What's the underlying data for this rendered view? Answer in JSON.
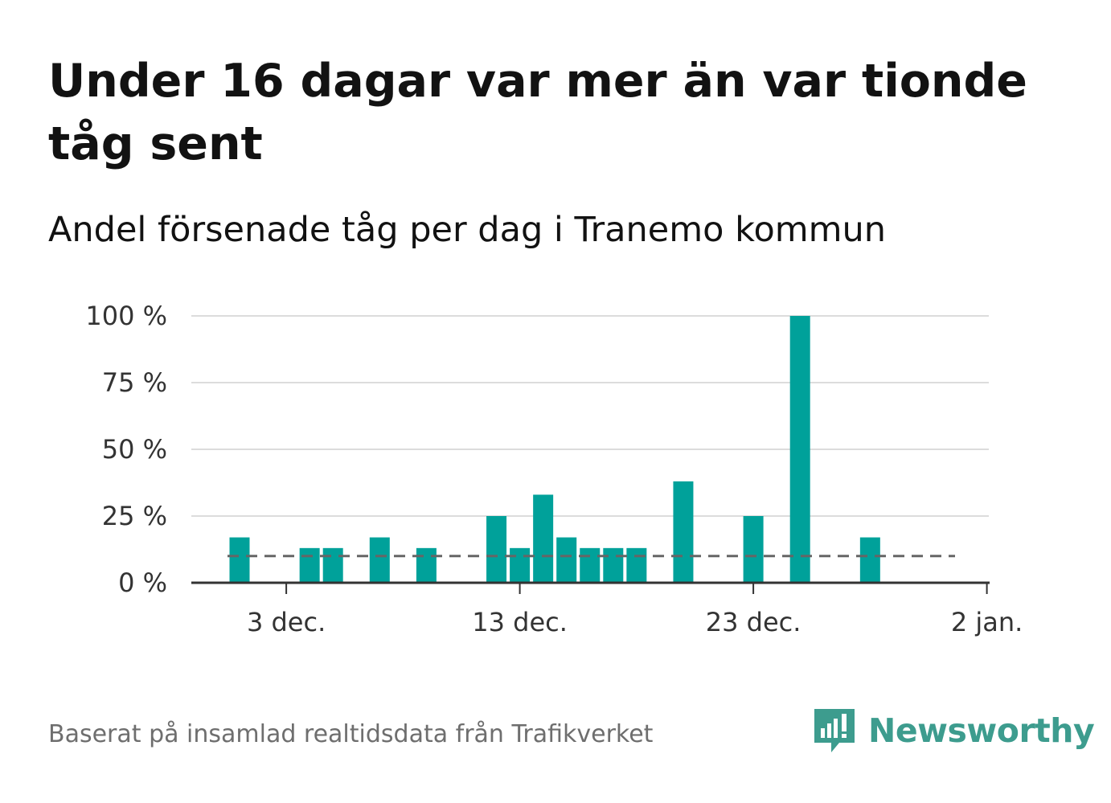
{
  "header": {
    "title": "Under 16 dagar var mer än var tionde tåg sent",
    "subtitle": "Andel försenade tåg per dag i Tranemo kommun"
  },
  "footer": {
    "source": "Baserat på insamlad realtidsdata från Trafikverket",
    "brand": "Newsworthy"
  },
  "colors": {
    "bar": "#00a19a",
    "gridline": "#dcdcdc",
    "axis": "#333333",
    "reference_line": "#666666",
    "brand": "#3d9c8e"
  },
  "icons": {
    "logo": "newsworthy-speech-bubble-bar-chart-icon"
  },
  "chart_data": {
    "type": "bar",
    "title": "Under 16 dagar var mer än var tionde tåg sent",
    "subtitle": "Andel försenade tåg per dag i Tranemo kommun",
    "xlabel": "",
    "ylabel": "",
    "x_start_day": 0,
    "x_end_day": 31,
    "x_ticks": [
      {
        "day": 2,
        "label": "3 dec."
      },
      {
        "day": 12,
        "label": "13 dec."
      },
      {
        "day": 22,
        "label": "23 dec."
      },
      {
        "day": 32,
        "label": "2 jan."
      }
    ],
    "ylim": [
      0,
      100
    ],
    "y_ticks": [
      {
        "value": 0,
        "label": "0 %"
      },
      {
        "value": 25,
        "label": "25 %"
      },
      {
        "value": 50,
        "label": "50 %"
      },
      {
        "value": 75,
        "label": "75 %"
      },
      {
        "value": 100,
        "label": "100 %"
      }
    ],
    "grid": true,
    "reference_line": {
      "value": 10,
      "style": "dashed"
    },
    "series": [
      {
        "name": "Andel försenade tåg",
        "days": [
          0,
          3,
          4,
          6,
          8,
          11,
          12,
          13,
          14,
          15,
          16,
          17,
          19,
          22,
          24,
          27
        ],
        "values": [
          17,
          13,
          13,
          17,
          13,
          25,
          13,
          33,
          17,
          13,
          13,
          13,
          38,
          25,
          100,
          17
        ]
      }
    ]
  }
}
